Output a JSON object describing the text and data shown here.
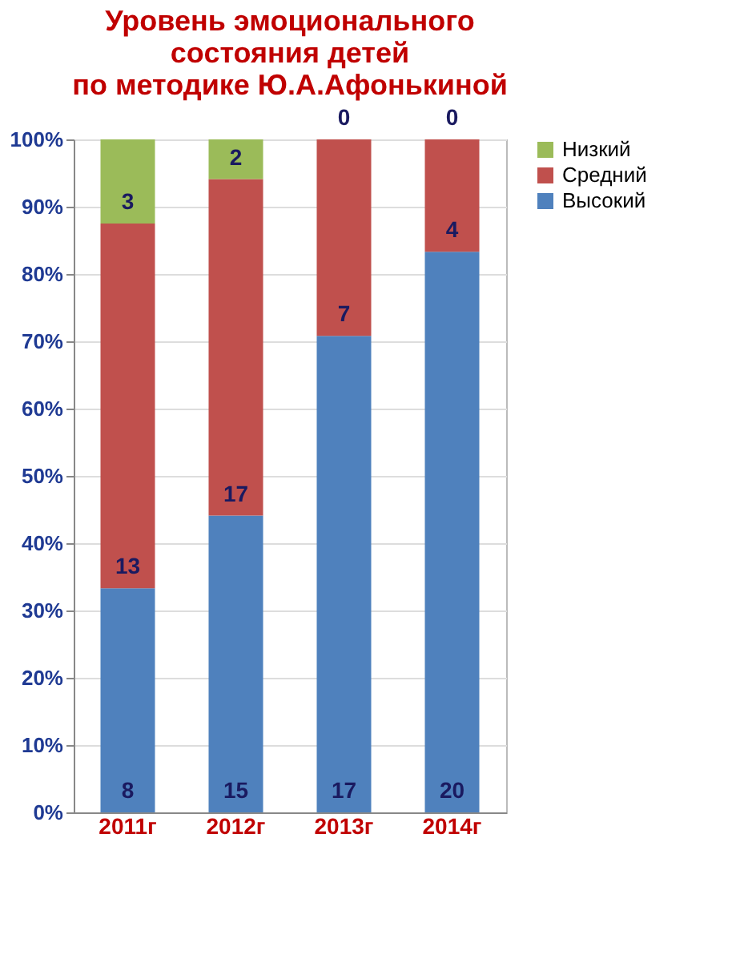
{
  "chart_data": {
    "type": "bar",
    "stacked": true,
    "title": "Уровень эмоционального\nсостояния детей\nпо методике Ю.А.Афонькиной",
    "categories": [
      "2011г",
      "2012г",
      "2013г",
      "2014г"
    ],
    "series": [
      {
        "name": "Высокий",
        "color": "#4f81bd",
        "values": [
          33.3,
          44.1,
          70.8,
          83.3
        ]
      },
      {
        "name": "Средний",
        "color": "#c0504d",
        "values": [
          54.2,
          50.0,
          29.2,
          16.7
        ]
      },
      {
        "name": "Низкий",
        "color": "#9bbb59",
        "values": [
          12.5,
          5.9,
          0,
          0
        ]
      }
    ],
    "annotations": [
      {
        "text": "8",
        "x": "2011г",
        "y": 0
      },
      {
        "text": "15",
        "x": "2012г",
        "y": 0
      },
      {
        "text": "17",
        "x": "2013г",
        "y": 0
      },
      {
        "text": "20",
        "x": "2014г",
        "y": 0
      },
      {
        "text": "13",
        "x": "2011г",
        "y": 33.3
      },
      {
        "text": "17",
        "x": "2012г",
        "y": 44.1
      },
      {
        "text": "7",
        "x": "2013г",
        "y": 70.8
      },
      {
        "text": "4",
        "x": "2014г",
        "y": 83.3
      },
      {
        "text": "3",
        "x": "2011г",
        "y": 87.5
      },
      {
        "text": "2",
        "x": "2012г",
        "y": 94.1
      },
      {
        "text": "0",
        "x": "2013г",
        "y": 100
      },
      {
        "text": "0",
        "x": "2014г",
        "y": 100
      }
    ],
    "ylim": [
      0,
      100
    ],
    "yticks": [
      {
        "value": 0,
        "label": "0%"
      },
      {
        "value": 10,
        "label": "10%"
      },
      {
        "value": 20,
        "label": "20%"
      },
      {
        "value": 30,
        "label": "30%"
      },
      {
        "value": 40,
        "label": "40%"
      },
      {
        "value": 50,
        "label": "50%"
      },
      {
        "value": 60,
        "label": "60%"
      },
      {
        "value": 70,
        "label": "70%"
      },
      {
        "value": 80,
        "label": "80%"
      },
      {
        "value": 90,
        "label": "90%"
      },
      {
        "value": 100,
        "label": "100%"
      }
    ],
    "grid": "y",
    "legend": "right"
  }
}
